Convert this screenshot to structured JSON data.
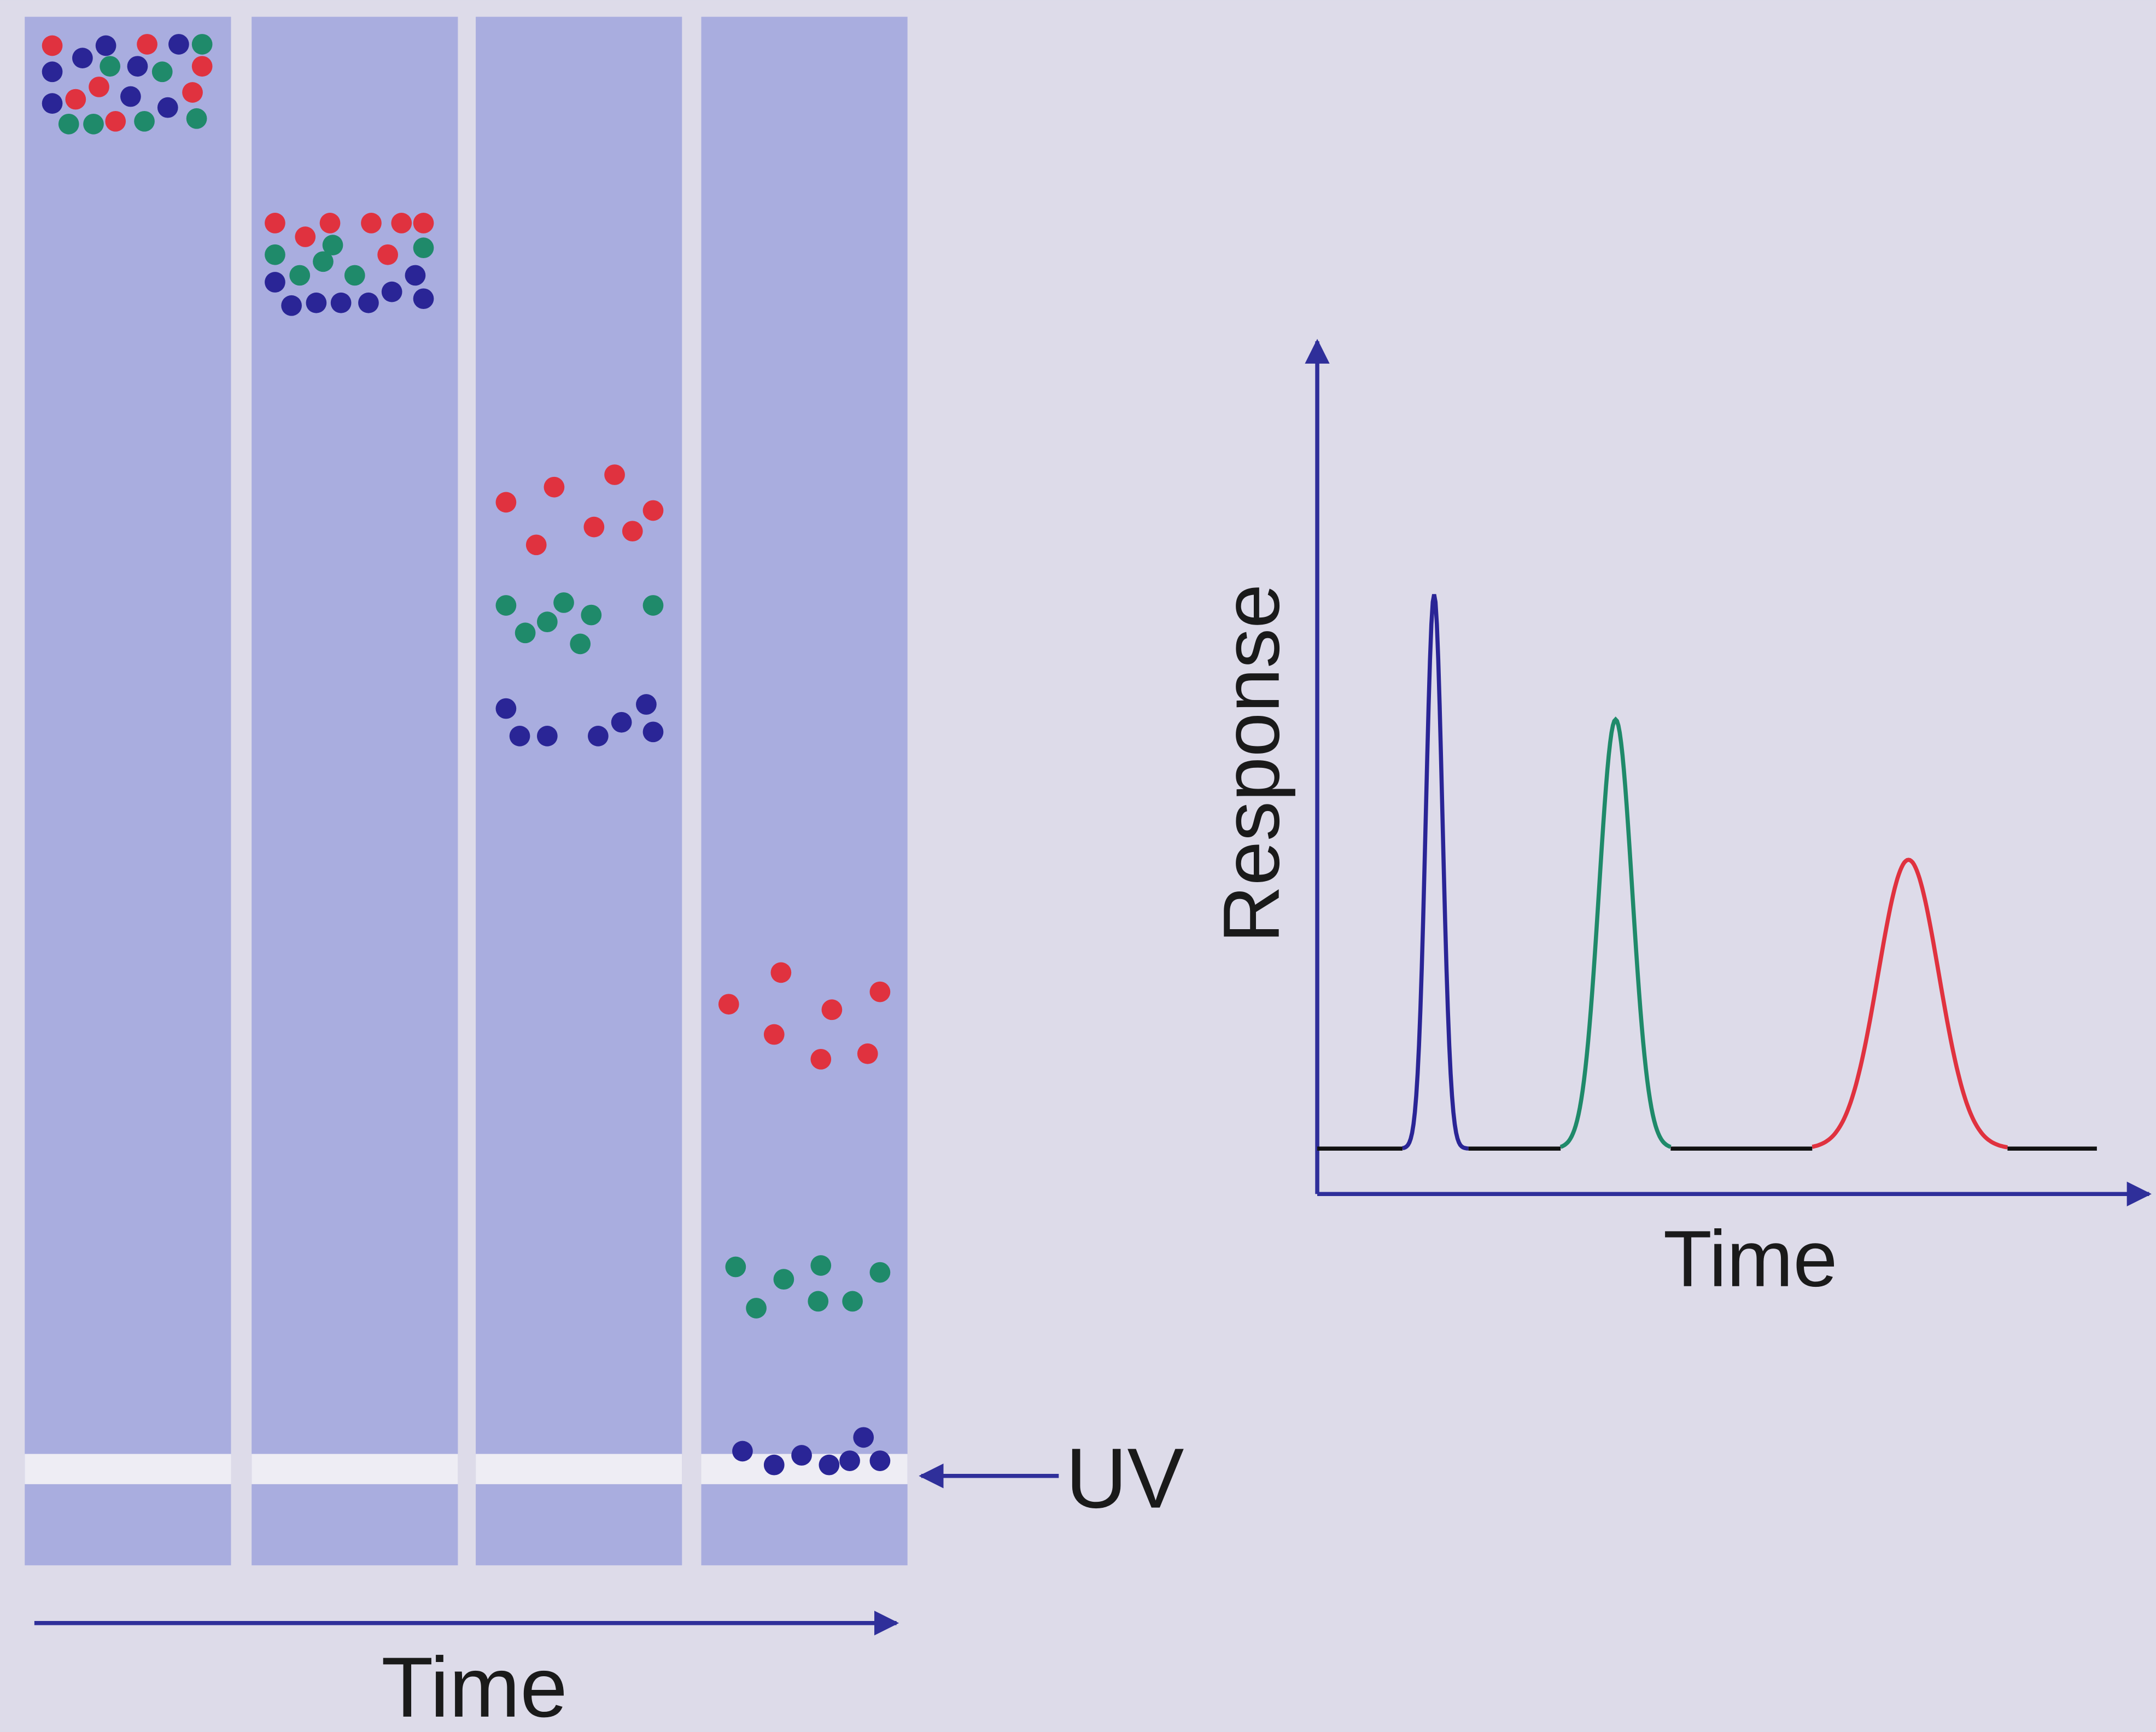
{
  "detector": {
    "label": "UV"
  },
  "column_axis": {
    "label": "Time"
  },
  "chromatogram": {
    "y_label": "Response",
    "x_label": "Time"
  }
}
